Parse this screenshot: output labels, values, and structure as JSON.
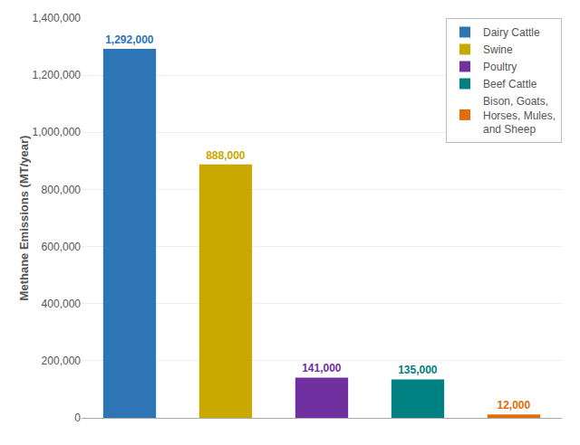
{
  "chart_data": {
    "type": "bar",
    "categories": [
      null,
      null,
      null,
      null,
      null
    ],
    "series": [
      {
        "name": "Dairy Cattle",
        "color": "#2e75b6",
        "values": [
          1292000,
          null,
          null,
          null,
          null
        ],
        "value_labels": [
          "1,292,000",
          null,
          null,
          null,
          null
        ]
      },
      {
        "name": "Swine",
        "color": "#c9a800",
        "values": [
          null,
          888000,
          null,
          null,
          null
        ],
        "value_labels": [
          null,
          "888,000",
          null,
          null,
          null
        ]
      },
      {
        "name": "Poultry",
        "color": "#7030a0",
        "values": [
          null,
          null,
          141000,
          null,
          null
        ],
        "value_labels": [
          null,
          null,
          "141,000",
          null,
          null
        ]
      },
      {
        "name": "Beef Cattle",
        "color": "#008080",
        "values": [
          null,
          null,
          null,
          135000,
          null
        ],
        "value_labels": [
          null,
          null,
          null,
          "135,000",
          null
        ]
      },
      {
        "name": "Bison, Goats,\nHorses, Mules,\nand Sheep",
        "color": "#e36c09",
        "values": [
          null,
          null,
          null,
          null,
          12000
        ],
        "value_labels": [
          null,
          null,
          null,
          null,
          "12,000"
        ]
      }
    ],
    "ylabel": "Methane Emissions (MT/year)",
    "ylim": [
      0,
      1400000
    ],
    "yticks": [
      0,
      {
        "value": 200000,
        "label": "200,000"
      },
      {
        "value": 400000,
        "label": "400,000"
      },
      {
        "value": 600000,
        "label": "600,000"
      },
      {
        "value": 800000,
        "label": "800,000"
      },
      {
        "value": 1000000,
        "label": "1,000,000"
      },
      {
        "value": 1200000,
        "label": "1,200,000"
      },
      {
        "value": 1400000,
        "label": "1,400,000"
      }
    ],
    "grid": true,
    "legend": "upper right",
    "data_labels": true,
    "tick_labels": "y"
  }
}
